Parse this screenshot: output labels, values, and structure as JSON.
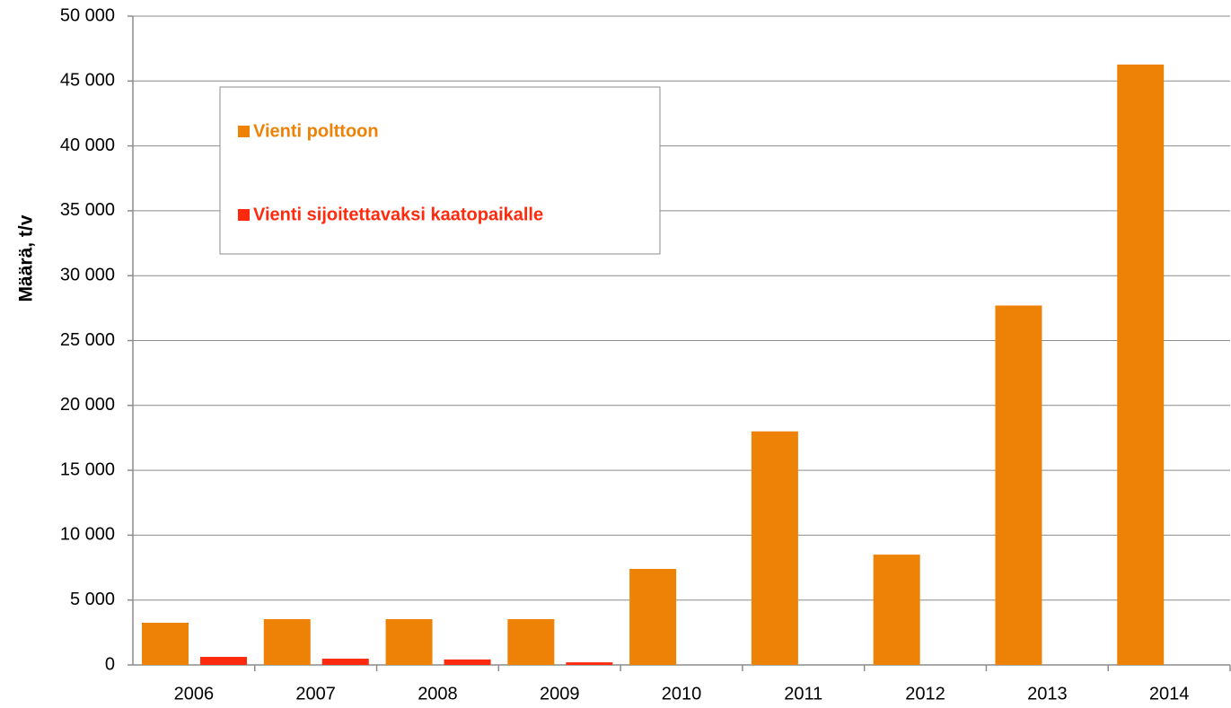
{
  "chart_data": {
    "type": "bar",
    "y_label": "Määrä, t/v",
    "categories": [
      "2006",
      "2007",
      "2008",
      "2009",
      "2010",
      "2011",
      "2012",
      "2013",
      "2014"
    ],
    "series": [
      {
        "name": "Vienti polttoon",
        "color": "#ee8207",
        "values": [
          3250,
          3530,
          3530,
          3530,
          7400,
          18000,
          8500,
          27700,
          46270
        ]
      },
      {
        "name": "Vienti sijoitettavaksi kaatopaikalle",
        "color": "#ff2a0d",
        "values": [
          620,
          480,
          420,
          200,
          0,
          0,
          0,
          0,
          0
        ]
      }
    ],
    "ylim": [
      0,
      50000
    ],
    "yticks": [
      0,
      {
        "value": 5000,
        "label": "5 000"
      },
      {
        "value": 10000,
        "label": "10 000"
      },
      {
        "value": 15000,
        "label": "15 000"
      },
      {
        "value": 20000,
        "label": "20 000"
      },
      {
        "value": 25000,
        "label": "25 000"
      },
      {
        "value": 30000,
        "label": "30 000"
      },
      {
        "value": 35000,
        "label": "35 000"
      },
      {
        "value": 40000,
        "label": "40 000"
      },
      {
        "value": 45000,
        "label": "45 000"
      },
      {
        "value": 50000,
        "label": "50 000"
      }
    ],
    "grid": true
  }
}
